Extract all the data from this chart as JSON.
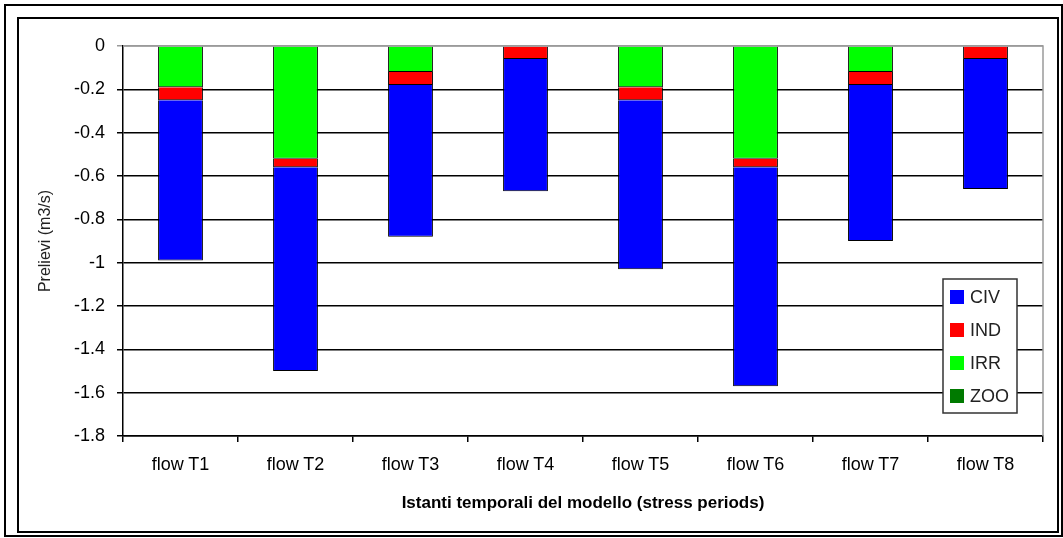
{
  "chart_data": {
    "type": "bar",
    "stacked": true,
    "xlabel": "Istanti temporali del modello (stress periods)",
    "ylabel": "Prelievi (m3/s)",
    "categories": [
      "flow T1",
      "flow T2",
      "flow T3",
      "flow T4",
      "flow T5",
      "flow T6",
      "flow T7",
      "flow T8"
    ],
    "series": [
      {
        "name": "ZOO",
        "color": "#007a00",
        "values": [
          0,
          0,
          0,
          0,
          0,
          0,
          0,
          0
        ]
      },
      {
        "name": "IRR",
        "color": "#00ff00",
        "values": [
          -0.19,
          -0.52,
          -0.12,
          0,
          -0.19,
          -0.52,
          -0.12,
          0
        ]
      },
      {
        "name": "IND",
        "color": "#ff0000",
        "values": [
          -0.06,
          -0.04,
          -0.06,
          -0.06,
          -0.06,
          -0.04,
          -0.06,
          -0.06
        ]
      },
      {
        "name": "CIV",
        "color": "#0000ff",
        "values": [
          -0.74,
          -0.94,
          -0.7,
          -0.61,
          -0.78,
          -1.01,
          -0.72,
          -0.6
        ]
      }
    ],
    "ylim": [
      -1.8,
      0
    ],
    "yticks": [
      0,
      -0.2,
      -0.4,
      -0.6,
      -0.8,
      -1,
      -1.2,
      -1.4,
      -1.6,
      -1.8
    ],
    "grid": "y",
    "legend": "bottom right"
  }
}
